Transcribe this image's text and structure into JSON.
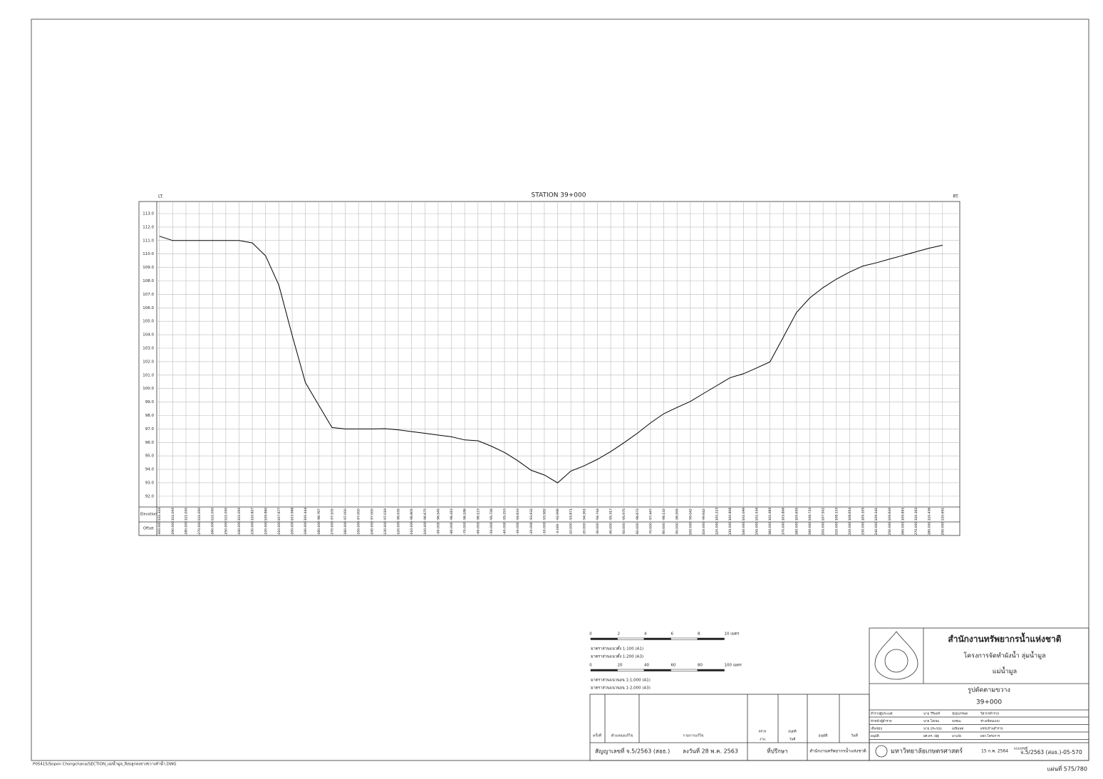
{
  "chart_data": {
    "type": "line",
    "title": "STATION 39+000",
    "left_label": "LT.",
    "right_label": "RT.",
    "row_labels": [
      "Elevation",
      "Offset"
    ],
    "color": "#000000",
    "grid": true,
    "x": [
      -300,
      -290,
      -280,
      -270,
      -260,
      -250,
      -240,
      -230,
      -220,
      -210,
      -200,
      -190,
      -180,
      -170,
      -160,
      -150,
      -140,
      -130,
      -120,
      -110,
      -100,
      -90,
      -80,
      -70,
      -60,
      -50,
      -40,
      -30,
      -20,
      -10,
      0,
      10,
      20,
      30,
      40,
      50,
      60,
      70,
      80,
      90,
      100,
      110,
      120,
      130,
      140,
      150,
      160,
      170,
      180,
      190,
      200,
      210,
      220,
      230,
      240,
      250,
      260,
      270,
      280,
      290
    ],
    "values": [
      111.324,
      111.0,
      111.0,
      111.0,
      111.0,
      111.0,
      111.0,
      110.827,
      109.86,
      107.677,
      103.968,
      100.444,
      98.767,
      97.105,
      97.0,
      97.0,
      97.0,
      97.018,
      96.935,
      96.805,
      96.675,
      96.545,
      96.415,
      96.186,
      96.123,
      95.726,
      95.253,
      94.633,
      93.932,
      93.582,
      92.996,
      93.871,
      94.261,
      94.744,
      95.317,
      95.975,
      96.672,
      97.447,
      98.132,
      98.595,
      99.042,
      99.642,
      100.223,
      100.808,
      101.099,
      101.534,
      101.985,
      103.806,
      105.655,
      106.733,
      107.502,
      108.133,
      108.654,
      109.105,
      109.341,
      109.619,
      109.891,
      110.163,
      110.436,
      110.651
    ],
    "value_labels": [
      "111.324",
      "111.000",
      "111.000",
      "111.000",
      "111.000",
      "111.000",
      "111.000",
      "110.827",
      "109.860",
      "107.677",
      "103.968",
      "100.444",
      "98.767",
      "97.105",
      "97.000",
      "97.000",
      "97.000",
      "97.018",
      "96.935",
      "96.805",
      "96.675",
      "96.545",
      "96.415",
      "96.186",
      "96.123",
      "95.726",
      "95.253",
      "94.633",
      "93.932",
      "93.582",
      "92.996",
      "93.871",
      "94.261",
      "94.744",
      "95.317",
      "95.975",
      "96.672",
      "97.447",
      "98.132",
      "98.595",
      "99.042",
      "99.642",
      "100.223",
      "100.808",
      "101.099",
      "101.534",
      "101.985",
      "103.806",
      "105.655",
      "106.733",
      "107.502",
      "108.133",
      "108.654",
      "109.105",
      "109.341",
      "109.619",
      "109.891",
      "110.163",
      "110.436",
      "110.651"
    ],
    "xlim": [
      -302,
      303
    ],
    "ylim": [
      91.2,
      113.9
    ],
    "xticks": [
      {
        "value": -300,
        "label": "-300.000"
      },
      {
        "value": -290,
        "label": "-290.000"
      },
      {
        "value": -280,
        "label": "-280.000"
      },
      {
        "value": -270,
        "label": "-270.000"
      },
      {
        "value": -260,
        "label": "-260.000"
      },
      {
        "value": -250,
        "label": "-250.000"
      },
      {
        "value": -240,
        "label": "-240.000"
      },
      {
        "value": -230,
        "label": "-230.000"
      },
      {
        "value": -220,
        "label": "-220.000"
      },
      {
        "value": -210,
        "label": "-210.000"
      },
      {
        "value": -200,
        "label": "-200.000"
      },
      {
        "value": -190,
        "label": "-190.000"
      },
      {
        "value": -180,
        "label": "-180.000"
      },
      {
        "value": -170,
        "label": "-170.000"
      },
      {
        "value": -160,
        "label": "-160.000"
      },
      {
        "value": -150,
        "label": "-150.000"
      },
      {
        "value": -140,
        "label": "-140.000"
      },
      {
        "value": -130,
        "label": "-130.000"
      },
      {
        "value": -120,
        "label": "-120.000"
      },
      {
        "value": -110,
        "label": "-110.000"
      },
      {
        "value": -100,
        "label": "-100.000"
      },
      {
        "value": -90,
        "label": "-90.000"
      },
      {
        "value": -80,
        "label": "-80.000"
      },
      {
        "value": -70,
        "label": "-70.000"
      },
      {
        "value": -60,
        "label": "-60.000"
      },
      {
        "value": -50,
        "label": "-50.000"
      },
      {
        "value": -40,
        "label": "-40.000"
      },
      {
        "value": -30,
        "label": "-30.000"
      },
      {
        "value": -20,
        "label": "-20.000"
      },
      {
        "value": -10,
        "label": "-10.000"
      },
      {
        "value": 0,
        "label": "0.000"
      },
      {
        "value": 10,
        "label": "10.000"
      },
      {
        "value": 20,
        "label": "20.000"
      },
      {
        "value": 30,
        "label": "30.000"
      },
      {
        "value": 40,
        "label": "40.000"
      },
      {
        "value": 50,
        "label": "50.000"
      },
      {
        "value": 60,
        "label": "60.000"
      },
      {
        "value": 70,
        "label": "70.000"
      },
      {
        "value": 80,
        "label": "80.000"
      },
      {
        "value": 90,
        "label": "90.000"
      },
      {
        "value": 100,
        "label": "100.000"
      },
      {
        "value": 110,
        "label": "110.000"
      },
      {
        "value": 120,
        "label": "120.000"
      },
      {
        "value": 130,
        "label": "130.000"
      },
      {
        "value": 140,
        "label": "140.000"
      },
      {
        "value": 150,
        "label": "150.000"
      },
      {
        "value": 160,
        "label": "160.000"
      },
      {
        "value": 170,
        "label": "170.000"
      },
      {
        "value": 180,
        "label": "180.000"
      },
      {
        "value": 190,
        "label": "190.000"
      },
      {
        "value": 200,
        "label": "200.000"
      },
      {
        "value": 210,
        "label": "210.000"
      },
      {
        "value": 220,
        "label": "220.000"
      },
      {
        "value": 230,
        "label": "230.000"
      },
      {
        "value": 240,
        "label": "240.000"
      },
      {
        "value": 250,
        "label": "250.000"
      },
      {
        "value": 260,
        "label": "260.000"
      },
      {
        "value": 270,
        "label": "270.000"
      },
      {
        "value": 280,
        "label": "280.000"
      },
      {
        "value": 290,
        "label": "290.000"
      }
    ],
    "yticks": [
      {
        "value": 92,
        "label": "92.0"
      },
      {
        "value": 93,
        "label": "93.0"
      },
      {
        "value": 94,
        "label": "94.0"
      },
      {
        "value": 95,
        "label": "95.0"
      },
      {
        "value": 96,
        "label": "96.0"
      },
      {
        "value": 97,
        "label": "97.0"
      },
      {
        "value": 98,
        "label": "98.0"
      },
      {
        "value": 99,
        "label": "99.0"
      },
      {
        "value": 100,
        "label": "100.0"
      },
      {
        "value": 101,
        "label": "101.0"
      },
      {
        "value": 102,
        "label": "102.0"
      },
      {
        "value": 103,
        "label": "103.0"
      },
      {
        "value": 104,
        "label": "104.0"
      },
      {
        "value": 105,
        "label": "105.0"
      },
      {
        "value": 106,
        "label": "106.0"
      },
      {
        "value": 107,
        "label": "107.0"
      },
      {
        "value": 108,
        "label": "108.0"
      },
      {
        "value": 109,
        "label": "109.0"
      },
      {
        "value": 110,
        "label": "110.0"
      },
      {
        "value": 111,
        "label": "111.0"
      },
      {
        "value": 112,
        "label": "112.0"
      },
      {
        "value": 113,
        "label": "113.0"
      }
    ]
  },
  "sheet": {
    "file_path": "P05415/Sopon Chongchana/SECTION_แม่น้ำมูล_ลิงบลูกลงจางขวางลำน้ำ.DWG",
    "sheet_number": "แผ่นที่ 575/780",
    "agency": "สำนักงานทรัพยากรน้ำแห่งชาติ",
    "project": "โครงการจัดทำผังน้ำ ลุ่มน้ำมูล",
    "river": "แม่น้ำมูล",
    "drawing_title": "รูปตัดตามขวาง",
    "station": "39+000",
    "university": "มหาวิทยาลัยเกษตรศาสตร์",
    "date": "15 ก.พ. 2564",
    "drawing_no_label": "แบบเลขที่",
    "drawing_no": "จ.5/2563 (สอธ.)-05-570",
    "contract": "สัญญาเลขที่ จ.5/2563 (สอธ.)",
    "contract_date": "ลงวันที่   28 พ.ค. 2563",
    "consultant": "ที่ปรึกษา",
    "owner": "สำนักงานทรัพยากรน้ำแห่งชาติ",
    "rev_headers": [
      "ครั้งที่",
      "ตำแหน่งแก้ไข",
      "รายการแก้ไข",
      "ตรวจ",
      "อนุมัติ",
      "งาน",
      "วันที่",
      "อนุมัติ",
      "วันที่"
    ],
    "staff": [
      [
        "สำรวจผู้ประเมศ",
        "นาย วีรินทร์",
        "น้อยบรรพต",
        "วิศวกรสำรวจ"
      ],
      [
        "หัวหน้าผู้สำรวจ",
        "นาย โสภณ",
        "จงชนะ",
        "ช่างเขียนแบบ"
      ],
      [
        "เห็นชอบ",
        "นาย ประกอบ",
        "มณีนนท",
        "ผชช.ด้านสำรวจ"
      ],
      [
        "อนุมัติ",
        "ผศ.ดร. ณัฐ",
        "มาแจ้ง",
        "ผจก.โครงการ"
      ]
    ],
    "scale1_ticks": [
      "0",
      "2",
      "4",
      "6",
      "8",
      "10 เมตร"
    ],
    "scale1_notes": [
      "มาตราส่วนแนวตั้ง 1:100 (A1)",
      "มาตราส่วนแนวตั้ง 1:200 (A3)"
    ],
    "scale2_ticks": [
      "0",
      "20",
      "40",
      "60",
      "80",
      "100 เมตร"
    ],
    "scale2_notes": [
      "มาตราส่วนแนวนอน 1:1,000 (A1)",
      "มาตราส่วนแนวนอน 1:2,000 (A3)"
    ]
  }
}
